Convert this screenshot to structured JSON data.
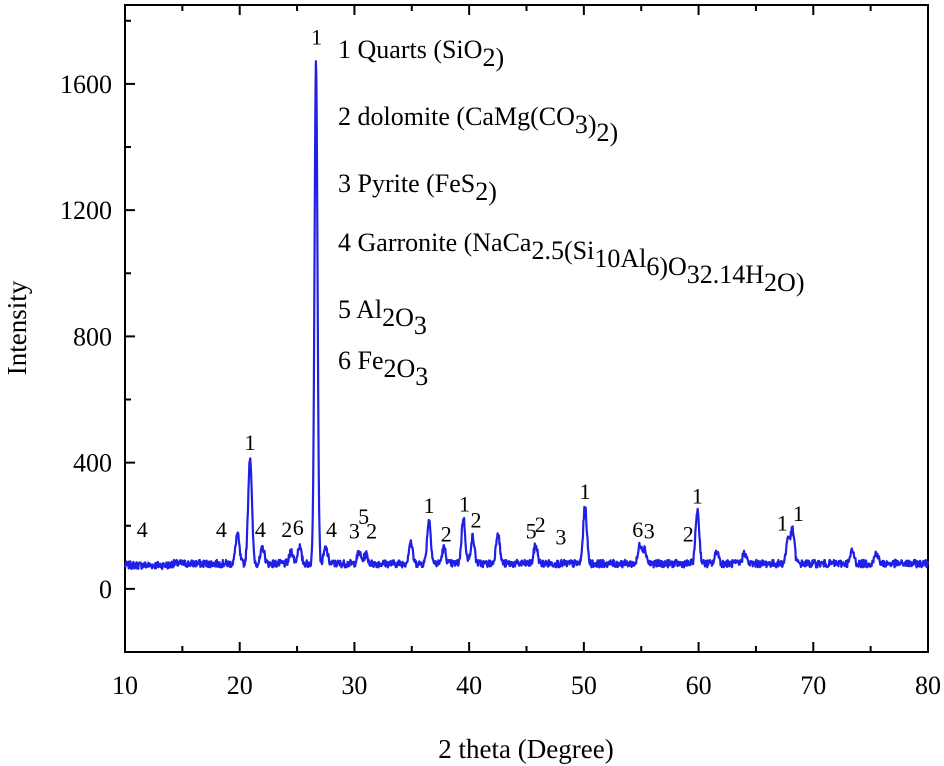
{
  "chart_data": {
    "type": "line",
    "title": "",
    "xlabel": "2 theta (Degree)",
    "ylabel": "Intensity",
    "xlim": [
      10,
      80
    ],
    "ylim": [
      -200,
      1850
    ],
    "xticks": [
      "10",
      "20",
      "30",
      "40",
      "50",
      "60",
      "70",
      "80"
    ],
    "yticks": [
      "0",
      "400",
      "800",
      "1200",
      "1600"
    ],
    "grid": false,
    "line_color": "#1f1fe6",
    "baseline": 80,
    "peaks": [
      {
        "x": 19.8,
        "y": 175
      },
      {
        "x": 20.9,
        "y": 420
      },
      {
        "x": 22.0,
        "y": 130
      },
      {
        "x": 24.5,
        "y": 120
      },
      {
        "x": 25.2,
        "y": 135
      },
      {
        "x": 26.65,
        "y": 1675
      },
      {
        "x": 27.5,
        "y": 130
      },
      {
        "x": 30.4,
        "y": 115
      },
      {
        "x": 31.0,
        "y": 110
      },
      {
        "x": 34.9,
        "y": 150
      },
      {
        "x": 36.5,
        "y": 220
      },
      {
        "x": 37.8,
        "y": 130
      },
      {
        "x": 39.5,
        "y": 225
      },
      {
        "x": 40.3,
        "y": 165
      },
      {
        "x": 42.5,
        "y": 180
      },
      {
        "x": 45.8,
        "y": 140
      },
      {
        "x": 50.1,
        "y": 260
      },
      {
        "x": 54.9,
        "y": 140
      },
      {
        "x": 55.3,
        "y": 125
      },
      {
        "x": 59.9,
        "y": 250
      },
      {
        "x": 61.6,
        "y": 120
      },
      {
        "x": 64.0,
        "y": 115
      },
      {
        "x": 67.8,
        "y": 160
      },
      {
        "x": 68.2,
        "y": 185
      },
      {
        "x": 73.4,
        "y": 120
      },
      {
        "x": 75.5,
        "y": 115
      }
    ],
    "peak_labels": [
      {
        "text": "4",
        "x": 11.5,
        "y": 165
      },
      {
        "text": "4",
        "x": 18.4,
        "y": 165
      },
      {
        "text": "1",
        "x": 20.9,
        "y": 440
      },
      {
        "text": "4",
        "x": 21.8,
        "y": 165
      },
      {
        "text": "2",
        "x": 24.1,
        "y": 165
      },
      {
        "text": "6",
        "x": 25.1,
        "y": 170
      },
      {
        "text": "1",
        "x": 26.7,
        "y": 1725
      },
      {
        "text": "4",
        "x": 28.0,
        "y": 165
      },
      {
        "text": "3",
        "x": 30.0,
        "y": 160
      },
      {
        "text": "5",
        "x": 30.8,
        "y": 205
      },
      {
        "text": "2",
        "x": 31.5,
        "y": 160
      },
      {
        "text": "1",
        "x": 36.5,
        "y": 240
      },
      {
        "text": "2",
        "x": 38.0,
        "y": 150
      },
      {
        "text": "1",
        "x": 39.6,
        "y": 245
      },
      {
        "text": "2",
        "x": 40.6,
        "y": 195
      },
      {
        "text": "5",
        "x": 45.4,
        "y": 160
      },
      {
        "text": "2",
        "x": 46.2,
        "y": 180
      },
      {
        "text": "3",
        "x": 48.0,
        "y": 140
      },
      {
        "text": "1",
        "x": 50.1,
        "y": 285
      },
      {
        "text": "6",
        "x": 54.7,
        "y": 165
      },
      {
        "text": "3",
        "x": 55.7,
        "y": 160
      },
      {
        "text": "2",
        "x": 59.1,
        "y": 150
      },
      {
        "text": "1",
        "x": 59.9,
        "y": 270
      },
      {
        "text": "1",
        "x": 67.3,
        "y": 185
      },
      {
        "text": "1",
        "x": 68.7,
        "y": 215
      }
    ],
    "legend": {
      "placement": "top-center",
      "entries": [
        [
          {
            "t": "1 Quarts (SiO"
          },
          {
            "t": "2",
            "sub": true
          },
          {
            "t": ")"
          }
        ],
        [
          {
            "t": "2 dolomite (CaMg(CO"
          },
          {
            "t": "3",
            "sub": true
          },
          {
            "t": ")"
          },
          {
            "t": "2",
            "sub": true
          },
          {
            "t": ")"
          }
        ],
        [
          {
            "t": "3 Pyrite (FeS"
          },
          {
            "t": "2",
            "sub": true
          },
          {
            "t": ")"
          }
        ],
        [
          {
            "t": "4 Garronite (NaCa"
          },
          {
            "t": "2.5",
            "sub": true
          },
          {
            "t": "(Si"
          },
          {
            "t": "10",
            "sub": true
          },
          {
            "t": "Al"
          },
          {
            "t": "6",
            "sub": true
          },
          {
            "t": ")O"
          },
          {
            "t": "32",
            "sub": true
          },
          {
            "t": ".14H"
          },
          {
            "t": "2",
            "sub": true
          },
          {
            "t": "O)"
          }
        ],
        [
          {
            "t": "5 Al"
          },
          {
            "t": "2",
            "sub": true
          },
          {
            "t": "O"
          },
          {
            "t": "3",
            "sub": true
          }
        ],
        [
          {
            "t": "6 Fe"
          },
          {
            "t": "2",
            "sub": true
          },
          {
            "t": "O"
          },
          {
            "t": "3",
            "sub": true
          }
        ]
      ]
    }
  }
}
